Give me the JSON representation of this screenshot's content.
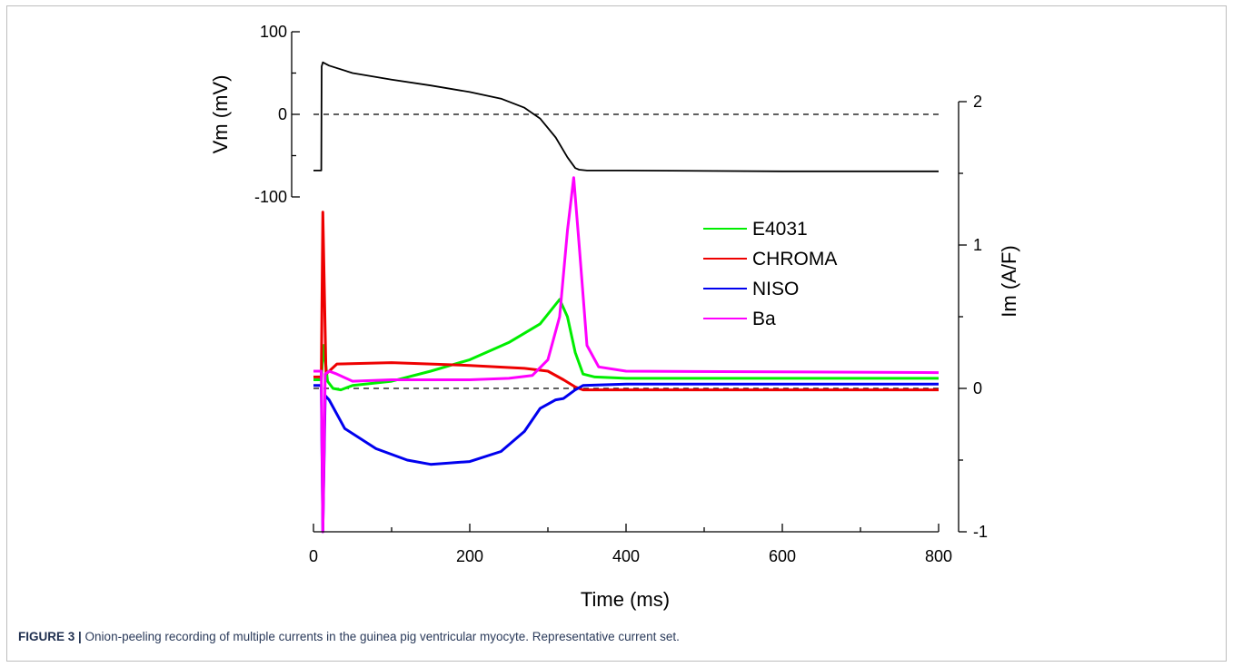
{
  "figure": {
    "label": "FIGURE 3 |",
    "caption": " Onion-peeling recording of multiple currents in the guinea pig ventricular myocyte. Representative current set."
  },
  "chart_data": {
    "type": "line",
    "xlabel": "Time (ms)",
    "xlim": [
      0,
      800
    ],
    "xticks": [
      0,
      200,
      400,
      600,
      800
    ],
    "panels": {
      "voltage": {
        "ylabel": "Vm (mV)",
        "axis_side": "left",
        "ylim": [
          -100,
          100
        ],
        "yticks": [
          -100,
          0,
          100
        ],
        "zero_reference_line": "dashed",
        "series": [
          {
            "name": "Vm",
            "color": "#000000",
            "x": [
              0,
              10,
              10.5,
              12,
              20,
              50,
              100,
              150,
              200,
              240,
              270,
              290,
              310,
              325,
              335,
              340,
              350,
              400,
              600,
              800
            ],
            "y": [
              -68,
              -68,
              58,
              63,
              59,
              50,
              42,
              35,
              27,
              19,
              8,
              -5,
              -28,
              -52,
              -65,
              -67,
              -68,
              -68,
              -69,
              -69
            ]
          }
        ]
      },
      "current": {
        "ylabel": "Im (A/F)",
        "axis_side": "right",
        "ylim": [
          -1,
          2
        ],
        "yticks": [
          -1,
          0,
          1,
          2
        ],
        "zero_reference_line": "dashed",
        "legend_position": "upper-right-inside",
        "series": [
          {
            "name": "E4031",
            "color": "#00ee00",
            "x": [
              0,
              10,
              13,
              18,
              25,
              35,
              50,
              100,
              150,
              200,
              250,
              290,
              315,
              325,
              335,
              345,
              360,
              400,
              800
            ],
            "y": [
              0.06,
              0.06,
              0.3,
              0.05,
              0.0,
              -0.01,
              0.02,
              0.05,
              0.12,
              0.2,
              0.32,
              0.45,
              0.62,
              0.5,
              0.25,
              0.1,
              0.08,
              0.07,
              0.07
            ]
          },
          {
            "name": "CHROMA",
            "color": "#ee0000",
            "x": [
              0,
              10,
              12,
              16,
              30,
              100,
              200,
              270,
              300,
              320,
              335,
              345,
              400,
              600,
              800
            ],
            "y": [
              0.08,
              0.08,
              1.23,
              0.1,
              0.17,
              0.18,
              0.16,
              0.14,
              0.12,
              0.06,
              0.01,
              -0.01,
              -0.01,
              -0.01,
              -0.01
            ]
          },
          {
            "name": "NISO",
            "color": "#0000ee",
            "x": [
              0,
              10,
              12,
              15,
              20,
              40,
              80,
              120,
              150,
              200,
              240,
              270,
              290,
              310,
              320,
              335,
              345,
              400,
              800
            ],
            "y": [
              0.02,
              0.02,
              -1.0,
              -0.05,
              -0.08,
              -0.28,
              -0.42,
              -0.5,
              -0.53,
              -0.51,
              -0.44,
              -0.3,
              -0.14,
              -0.08,
              -0.07,
              -0.01,
              0.02,
              0.03,
              0.03
            ]
          },
          {
            "name": "Ba",
            "color": "#ff00ff",
            "x": [
              0,
              10,
              12,
              15,
              20,
              30,
              50,
              100,
              150,
              200,
              250,
              280,
              300,
              315,
              325,
              333,
              340,
              350,
              365,
              400,
              800
            ],
            "y": [
              0.12,
              0.12,
              -1.0,
              0.1,
              0.12,
              0.1,
              0.05,
              0.06,
              0.06,
              0.06,
              0.07,
              0.09,
              0.2,
              0.5,
              1.1,
              1.47,
              1.0,
              0.3,
              0.15,
              0.12,
              0.11
            ]
          }
        ]
      }
    }
  }
}
